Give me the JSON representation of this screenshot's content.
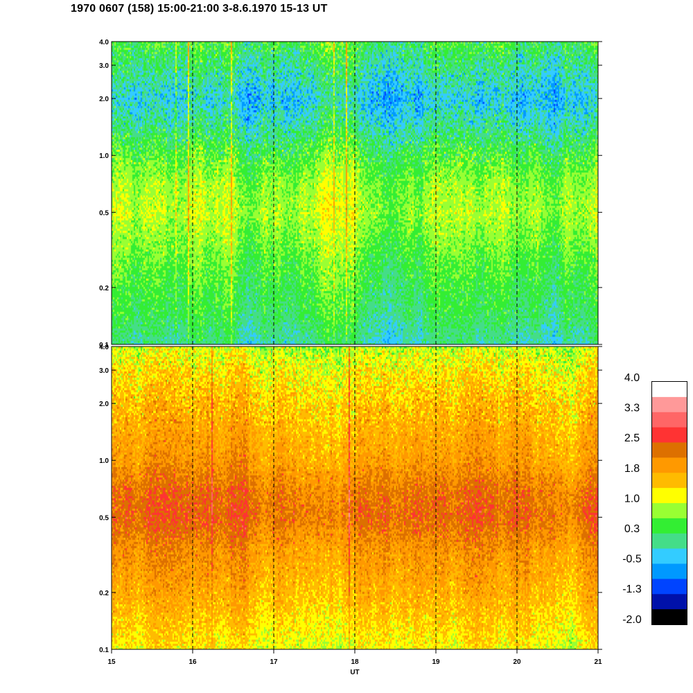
{
  "title": "1970 0607 (158) 15:00-21:00 3-8.6.1970  15-13 UT",
  "chart_data": [
    {
      "type": "heatmap",
      "panel": "top",
      "x_label": "",
      "xlim": [
        15,
        21
      ],
      "ylim": [
        0.1,
        4.0
      ],
      "y_scale": "log",
      "y_ticks": [
        "0.1",
        "0.2",
        "0.5",
        "1.0",
        "2.0",
        "3.0",
        "4.0"
      ],
      "y_tick_values": [
        0.1,
        0.2,
        0.5,
        1.0,
        2.0,
        3.0,
        4.0
      ],
      "vertical_dashed_lines": [
        16,
        17,
        18,
        19,
        20
      ],
      "profile": [
        {
          "y": 4.0,
          "value": 0.4
        },
        {
          "y": 3.0,
          "value": 0.1
        },
        {
          "y": 2.0,
          "value": -0.3
        },
        {
          "y": 1.5,
          "value": 0.0
        },
        {
          "y": 1.0,
          "value": 0.5
        },
        {
          "y": 0.7,
          "value": 0.8
        },
        {
          "y": 0.5,
          "value": 0.9
        },
        {
          "y": 0.3,
          "value": 0.6
        },
        {
          "y": 0.2,
          "value": 0.4
        },
        {
          "y": 0.15,
          "value": 0.3
        },
        {
          "y": 0.1,
          "value": 0.0
        }
      ]
    },
    {
      "type": "heatmap",
      "panel": "bottom",
      "x_label": "UT",
      "xlim": [
        15,
        21
      ],
      "ylim": [
        0.1,
        4.0
      ],
      "y_scale": "log",
      "x_ticks": [
        "15",
        "16",
        "17",
        "18",
        "19",
        "20",
        "21"
      ],
      "x_tick_values": [
        15,
        16,
        17,
        18,
        19,
        20,
        21
      ],
      "y_ticks": [
        "0.1",
        "0.2",
        "0.5",
        "1.0",
        "2.0",
        "3.0",
        "4.0"
      ],
      "y_tick_values": [
        0.1,
        0.2,
        0.5,
        1.0,
        2.0,
        3.0,
        4.0
      ],
      "vertical_dashed_lines": [
        16,
        17,
        18,
        19,
        20
      ],
      "profile": [
        {
          "y": 4.0,
          "value": 1.0
        },
        {
          "y": 3.0,
          "value": 1.3
        },
        {
          "y": 2.0,
          "value": 1.6
        },
        {
          "y": 1.0,
          "value": 1.9
        },
        {
          "y": 0.7,
          "value": 2.25
        },
        {
          "y": 0.5,
          "value": 2.35
        },
        {
          "y": 0.35,
          "value": 2.0
        },
        {
          "y": 0.2,
          "value": 1.7
        },
        {
          "y": 0.15,
          "value": 1.5
        },
        {
          "y": 0.1,
          "value": 1.2
        }
      ]
    }
  ],
  "colorbar": {
    "labels": [
      "4.0",
      "3.3",
      "2.5",
      "1.8",
      "1.0",
      "0.3",
      "-0.5",
      "-1.3",
      "-2.0"
    ],
    "vmin": -2.0,
    "vmax": 4.0,
    "colors_top_to_bottom": [
      "#ffffff",
      "#ff9999",
      "#ff6666",
      "#ff3333",
      "#dd7000",
      "#ff9900",
      "#ffbb00",
      "#ffff00",
      "#99ff33",
      "#33ee33",
      "#44dd88",
      "#33ccff",
      "#0099ff",
      "#0044ff",
      "#0011aa",
      "#000000"
    ]
  }
}
